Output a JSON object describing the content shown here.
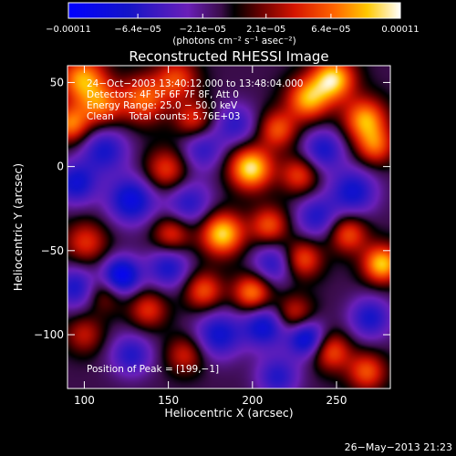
{
  "chart_data": {
    "type": "heatmap",
    "title": "Reconstructed RHESSI Image",
    "xlabel": "Heliocentric X (arcsec)",
    "ylabel": "Heliocentric Y (arcsec)",
    "xlim": [
      90,
      282
    ],
    "ylim": [
      -132,
      60
    ],
    "xticks": [
      100,
      150,
      200,
      250
    ],
    "yticks": [
      50,
      0,
      -50,
      -100
    ],
    "xtick_labels": [
      "100",
      "150",
      "200",
      "250"
    ],
    "ytick_labels": [
      "50",
      "0",
      "−50",
      "−100"
    ],
    "colorbar": {
      "min": -0.00011,
      "max": 0.00011,
      "tick_values": [
        -0.00011,
        -6.4e-05,
        -2.1e-05,
        2.1e-05,
        6.4e-05,
        0.00011
      ],
      "tick_labels": [
        "−0.00011",
        "−6.4e−05",
        "−2.1e−05",
        "2.1e−05",
        "6.4e−05",
        "0.00011"
      ],
      "units_label": "(photons cm⁻² s⁻¹ asec⁻²)"
    },
    "annotations": [
      "24−Oct−2003 13:40:12.000 to 13:48:04.000",
      "Detectors: 4F 5F 6F 7F 8F, Att 0",
      "Energy Range: 25.0 − 50.0 keV",
      "Clean     Total counts: 5.76E+03"
    ],
    "peak_label": "Position of Peak = [199,−1]",
    "footer_date": "26−May−2013 21:23",
    "blobs": [
      {
        "x": 99,
        "y": 52,
        "v": 0.8,
        "s": 10
      },
      {
        "x": 92,
        "y": 25,
        "v": 0.7,
        "s": 8
      },
      {
        "x": 110,
        "y": 36,
        "v": 0.6,
        "s": 9
      },
      {
        "x": 135,
        "y": 40,
        "v": 0.65,
        "s": 10
      },
      {
        "x": 155,
        "y": 52,
        "v": 0.55,
        "s": 9
      },
      {
        "x": 165,
        "y": 28,
        "v": 0.5,
        "s": 8
      },
      {
        "x": 149,
        "y": -2,
        "v": 0.55,
        "s": 9
      },
      {
        "x": 199,
        "y": -1,
        "v": 1.0,
        "s": 9
      },
      {
        "x": 215,
        "y": 22,
        "v": 0.6,
        "s": 8
      },
      {
        "x": 233,
        "y": 40,
        "v": 0.8,
        "s": 9
      },
      {
        "x": 248,
        "y": 52,
        "v": 0.95,
        "s": 9
      },
      {
        "x": 267,
        "y": 28,
        "v": 0.8,
        "s": 9
      },
      {
        "x": 273,
        "y": 12,
        "v": 0.6,
        "s": 8
      },
      {
        "x": 228,
        "y": -5,
        "v": 0.55,
        "s": 8
      },
      {
        "x": 257,
        "y": -40,
        "v": 0.6,
        "s": 8
      },
      {
        "x": 277,
        "y": -58,
        "v": 0.9,
        "s": 8
      },
      {
        "x": 182,
        "y": -40,
        "v": 0.95,
        "s": 9
      },
      {
        "x": 210,
        "y": -35,
        "v": 0.6,
        "s": 8
      },
      {
        "x": 230,
        "y": -55,
        "v": 0.6,
        "s": 8
      },
      {
        "x": 152,
        "y": -40,
        "v": 0.55,
        "s": 8
      },
      {
        "x": 171,
        "y": -74,
        "v": 0.6,
        "s": 8
      },
      {
        "x": 200,
        "y": -75,
        "v": 0.75,
        "s": 8
      },
      {
        "x": 225,
        "y": -88,
        "v": 0.5,
        "s": 8
      },
      {
        "x": 101,
        "y": -45,
        "v": 0.5,
        "s": 9
      },
      {
        "x": 112,
        "y": -76,
        "v": 0.35,
        "s": 8
      },
      {
        "x": 138,
        "y": -85,
        "v": 0.5,
        "s": 8
      },
      {
        "x": 100,
        "y": -100,
        "v": 0.4,
        "s": 8
      },
      {
        "x": 160,
        "y": -112,
        "v": 0.45,
        "s": 8
      },
      {
        "x": 247,
        "y": -110,
        "v": 0.6,
        "s": 8
      },
      {
        "x": 268,
        "y": -122,
        "v": 0.6,
        "s": 8
      },
      {
        "x": 112,
        "y": 10,
        "v": -0.55,
        "s": 10
      },
      {
        "x": 95,
        "y": -10,
        "v": -0.6,
        "s": 9
      },
      {
        "x": 128,
        "y": -20,
        "v": -0.7,
        "s": 10
      },
      {
        "x": 162,
        "y": -22,
        "v": -0.5,
        "s": 10
      },
      {
        "x": 170,
        "y": 10,
        "v": -0.45,
        "s": 9
      },
      {
        "x": 190,
        "y": 25,
        "v": -0.45,
        "s": 9
      },
      {
        "x": 242,
        "y": 10,
        "v": -0.55,
        "s": 9
      },
      {
        "x": 260,
        "y": -15,
        "v": -0.6,
        "s": 10
      },
      {
        "x": 238,
        "y": -30,
        "v": -0.5,
        "s": 9
      },
      {
        "x": 212,
        "y": -58,
        "v": -0.5,
        "s": 9
      },
      {
        "x": 122,
        "y": -65,
        "v": -0.85,
        "s": 8
      },
      {
        "x": 95,
        "y": -72,
        "v": -0.55,
        "s": 9
      },
      {
        "x": 150,
        "y": -60,
        "v": -0.55,
        "s": 9
      },
      {
        "x": 180,
        "y": -100,
        "v": -0.6,
        "s": 10
      },
      {
        "x": 207,
        "y": -95,
        "v": -0.65,
        "s": 9
      },
      {
        "x": 232,
        "y": -102,
        "v": -0.75,
        "s": 8
      },
      {
        "x": 128,
        "y": -112,
        "v": -0.5,
        "s": 9
      },
      {
        "x": 270,
        "y": -90,
        "v": -0.55,
        "s": 9
      },
      {
        "x": 215,
        "y": -125,
        "v": -0.5,
        "s": 9
      }
    ]
  }
}
